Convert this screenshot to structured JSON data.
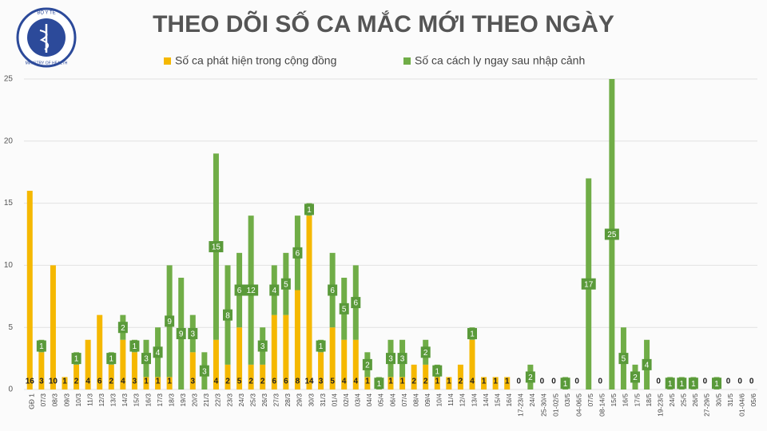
{
  "logo": {
    "top": "BỘ Y TẾ",
    "bottom": "MINISTRY OF HEALTH"
  },
  "chart_data": {
    "type": "stacked_bar",
    "title": "THEO DÕI SỐ CA MẮC MỚI THEO NGÀY",
    "categories": [
      "GĐ 1",
      "07/3",
      "08/3",
      "09/3",
      "10/3",
      "11/3",
      "12/3",
      "13/3",
      "14/3",
      "15/3",
      "16/3",
      "17/3",
      "18/3",
      "19/3",
      "20/3",
      "21/3",
      "22/3",
      "23/3",
      "24/3",
      "25/3",
      "26/3",
      "27/3",
      "28/3",
      "29/3",
      "30/3",
      "31/3",
      "01/4",
      "02/4",
      "03/4",
      "04/4",
      "05/4",
      "06/4",
      "07/4",
      "08/4",
      "09/4",
      "10/4",
      "11/4",
      "12/4",
      "13/4",
      "14/4",
      "15/4",
      "16/4",
      "17-23/4",
      "24/4",
      "25-30/4",
      "01-02/5",
      "03/5",
      "04-06/5",
      "07/5",
      "08-14/5",
      "15/5",
      "16/5",
      "17/5",
      "18/5",
      "19-23/5",
      "24/5",
      "25/5",
      "26/5",
      "27-29/5",
      "30/5",
      "31/5",
      "01-04/6",
      "05/6"
    ],
    "series": [
      {
        "name": "Số ca phát hiện trong cộng đồng",
        "color": "#f5b800",
        "values": [
          16,
          3,
          10,
          1,
          2,
          4,
          6,
          2,
          4,
          3,
          1,
          1,
          1,
          0,
          3,
          0,
          4,
          2,
          5,
          2,
          2,
          6,
          6,
          8,
          14,
          3,
          5,
          4,
          4,
          1,
          0,
          1,
          1,
          2,
          2,
          1,
          1,
          2,
          4,
          1,
          1,
          1,
          0,
          0,
          0,
          0,
          0,
          0,
          0,
          0,
          0,
          0,
          0,
          0,
          0,
          0,
          0,
          0,
          0,
          0,
          0,
          0,
          0
        ]
      },
      {
        "name": "Số ca cách ly ngay sau nhập cảnh",
        "color": "#70ad47",
        "values": [
          0,
          1,
          0,
          0,
          1,
          0,
          0,
          1,
          2,
          1,
          3,
          4,
          9,
          9,
          3,
          3,
          15,
          8,
          6,
          12,
          3,
          4,
          5,
          6,
          1,
          1,
          6,
          5,
          6,
          2,
          1,
          3,
          3,
          0,
          2,
          1,
          0,
          0,
          1,
          0,
          0,
          0,
          0,
          2,
          0,
          0,
          1,
          0,
          17,
          0,
          25,
          5,
          2,
          4,
          0,
          1,
          1,
          1,
          0,
          1,
          0,
          0,
          0
        ]
      }
    ],
    "ylim": [
      0,
      25
    ],
    "yticks": [
      0,
      5,
      10,
      15,
      20,
      25
    ],
    "grid": true,
    "legend": "top"
  }
}
